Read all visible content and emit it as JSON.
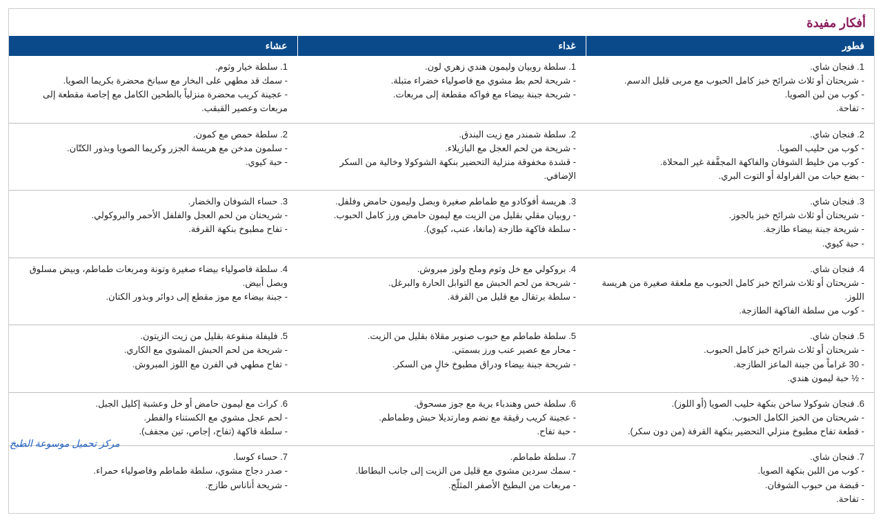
{
  "title": "أفكار مفيدة",
  "columns": [
    "فطور",
    "غداء",
    "عشاء"
  ],
  "header_bg": "#0a4a8a",
  "header_fg": "#ffffff",
  "title_color": "#8b1a5c",
  "border_color": "#bfbfbf",
  "watermark": "مركز تحميل موسوعة الطبخ",
  "rows": [
    {
      "breakfast": "1. فنجان شاي.\n- شريحتان أو ثلاث شرائح خبز كامل الحبوب مع مربى قليل الدسم.\n- كوب من لبن الصويا.\n- تفاحة.",
      "lunch": "1. سلطة روبيان وليمون هندي زهري لون.\n- شريحة لحم بط مشوي مع فاصولياء خضراء متبلة.\n- شريحة جبنة بيضاء مع فواكه مقطعة إلى مربعات.",
      "dinner": "1. سلطة خيار وثوم.\n- سمك قد مطهي على البخار مع سبانخ محضرة بكريما الصويا.\n- عجينة كريب محضرة منزلياً بالطحين الكامل مع إجاصة مقطعة إلى مربعات وعصير القبقب."
    },
    {
      "breakfast": "2. فنجان شاي.\n- كوب من حليب الصويا.\n- كوب من خليط الشوفان والفاكهة المجفَّفة غير المحلاة.\n- بضع حبات من الفراولة أو التوت البري.",
      "lunch": "2. سلطة شمندر مع زيت البندق.\n- شريحة من لحم العجل مع البازيلاء.\n- قشدة مخفوقة منزلية التحضير بنكهة الشوكولا وخالية من السكر الإضافي.",
      "dinner": "2. سلطة حمص مع كمون.\n- سلمون مدخن مع هريسة الجزر وكريما الصويا وبذور الكتّان.\n- حبة كيوي."
    },
    {
      "breakfast": "3. فنجان شاي.\n- شريحتان أو ثلاث شرائح خبز بالجوز.\n- شريحة جبنة بيضاء طازجة.\n- حبة كيوي.",
      "lunch": "3. هريسة أفوكادو مع طماطم صغيرة وبصل وليمون حامض وفلفل.\n- روبيان مقلي بقليل من الزيت مع ليمون حامض ورز كامل الحبوب.\n- سلطة فاكهة طازجة (مانغا، عنب، كيوي).",
      "dinner": "3. حساء الشوفان والخضار.\n- شريحتان من لحم العجل والفلفل الأحمر والبروكولي.\n- تفاح مطبوخ بنكهة القرفة."
    },
    {
      "breakfast": "4. فنجان شاي.\n- شريحتان أو ثلاث شرائح خبز كامل الحبوب مع ملعقة صغيرة من هريسة اللوز.\n- كوب من سلطة الفاكهة الطازجة.",
      "lunch": "4. بروكولي مع خل وثوم وملح ولوز مبروش.\n- شريحة من لحم الحبش مع التوابل الحارة والبرغل.\n- سلطة برتقال مع قليل من القرفة.",
      "dinner": "4. سلطة فاصولياء بيضاء صغيرة وتونة ومربعات طماطم، وبيض مسلوق وبصل أبيض.\n- جبنة بيضاء مع موز مقطع إلى دوائر وبذور الكتان."
    },
    {
      "breakfast": "5. فنجان شاي.\n- شريحتان أو ثلاث شرائح خبز كامل الحبوب.\n- 30 غراماً من جبنة الماعز الطازجة.\n- ½ حبة ليمون هندي.",
      "lunch": "5. سلطة طماطم مع حبوب صنوبر مقلاة بقليل من الزيت.\n- محار مع عصير عنب ورز بسمتي.\n- شريحة جبنة بيضاء ودراق مطبوخ خالٍ من السكر.",
      "dinner": "5. فليفلة منقوعة بقليل من زيت الزيتون.\n- شريحة من لحم الحبش المشوي مع الكاري.\n- تفاح مطهي في الفرن مع اللوز المبروش."
    },
    {
      "breakfast": "6. فنجان شوكولا ساخن بنكهة حليب الصويا (أو اللوز).\n- شريحتان من الخبز الكامل الحبوب.\n- قطعة تفاح مطبوخ منزلي التحضير بنكهة القرفة (من دون سكر).",
      "lunch": "6. سلطة خس وهندباء برية مع جوز مسحوق.\n- عجينة كريب رقيقة مع نضم ومارتديلا حبش وطماطم.\n- حبة تفاح.",
      "dinner": "6. كراث مع ليمون حامض أو خل وعشبة إكليل الجبل.\n- لحم عجل مشوي مع الكستناء والفطر.\n- سلطة فاكهة (تفاح، إجاص، تين مجفف)."
    },
    {
      "breakfast": "7. فنجان شاي.\n- كوب من اللبن بنكهة الصويا.\n- قبضة من حبوب الشوفان.\n- تفاحة.",
      "lunch": "7. سلطة طماطم.\n- سمك سردين مشوي مع قليل من الزيت إلى جانب البطاطا.\n- مربعات من البطيخ الأصفر المثلّج.",
      "dinner": "7. حساء كوسا.\n- صدر دجاج مشوي، سلطة طماطم وفاصولياء حمراء.\n- شريحة أناناس طازج."
    }
  ]
}
